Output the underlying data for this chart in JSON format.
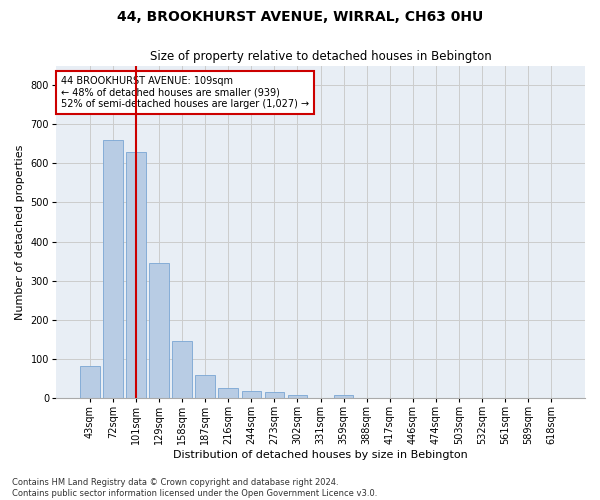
{
  "title": "44, BROOKHURST AVENUE, WIRRAL, CH63 0HU",
  "subtitle": "Size of property relative to detached houses in Bebington",
  "xlabel": "Distribution of detached houses by size in Bebington",
  "ylabel": "Number of detached properties",
  "categories": [
    "43sqm",
    "72sqm",
    "101sqm",
    "129sqm",
    "158sqm",
    "187sqm",
    "216sqm",
    "244sqm",
    "273sqm",
    "302sqm",
    "331sqm",
    "359sqm",
    "388sqm",
    "417sqm",
    "446sqm",
    "474sqm",
    "503sqm",
    "532sqm",
    "561sqm",
    "589sqm",
    "618sqm"
  ],
  "values": [
    83,
    660,
    628,
    346,
    145,
    58,
    25,
    18,
    15,
    7,
    0,
    8,
    0,
    0,
    0,
    0,
    0,
    0,
    0,
    0,
    0
  ],
  "bar_color": "#b8cce4",
  "bar_edgecolor": "#7aa6d4",
  "redline_index": 2,
  "redline_color": "#cc0000",
  "annotation_text": "44 BROOKHURST AVENUE: 109sqm\n← 48% of detached houses are smaller (939)\n52% of semi-detached houses are larger (1,027) →",
  "annotation_box_color": "#ffffff",
  "annotation_box_edgecolor": "#cc0000",
  "ylim": [
    0,
    850
  ],
  "yticks": [
    0,
    100,
    200,
    300,
    400,
    500,
    600,
    700,
    800
  ],
  "grid_color": "#cccccc",
  "bg_color": "#e8eef5",
  "footnote": "Contains HM Land Registry data © Crown copyright and database right 2024.\nContains public sector information licensed under the Open Government Licence v3.0.",
  "title_fontsize": 10,
  "subtitle_fontsize": 8.5,
  "xlabel_fontsize": 8,
  "ylabel_fontsize": 8,
  "tick_fontsize": 7,
  "annotation_fontsize": 7,
  "footnote_fontsize": 6
}
